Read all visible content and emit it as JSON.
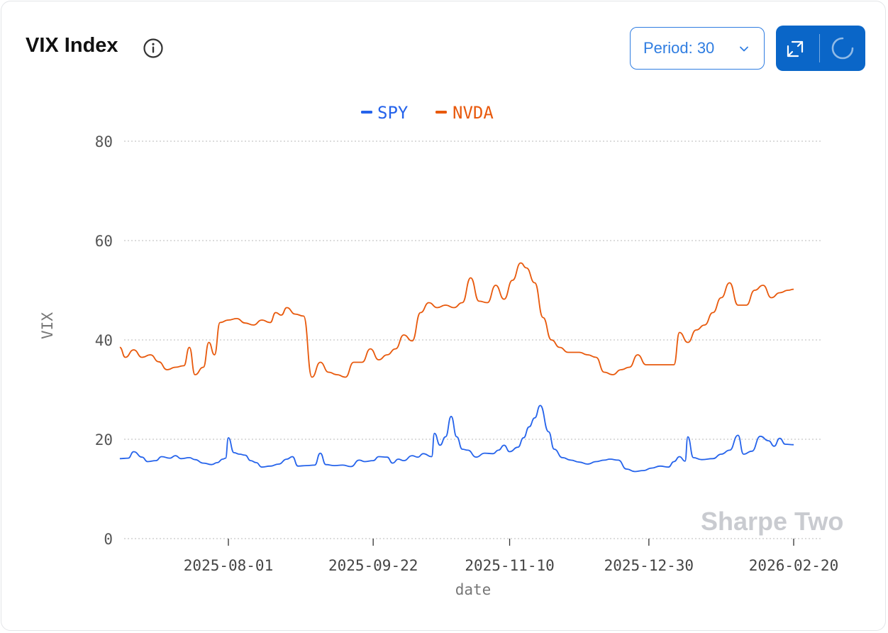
{
  "header": {
    "title": "VIX Index",
    "period_label": "Period: 30"
  },
  "icons": {
    "info": "info-icon",
    "chevron": "chevron-down-icon",
    "expand": "expand-icon",
    "loading": "spinner-icon"
  },
  "colors": {
    "accent": "#0a66c8",
    "spy": "#2563eb",
    "nvda": "#e8590c"
  },
  "watermark": "Sharpe Two",
  "chart_data": {
    "type": "line",
    "title": "",
    "xlabel": "date",
    "ylabel": "VIX",
    "ylim": [
      0,
      80
    ],
    "yticks": [
      0,
      20,
      40,
      60,
      80
    ],
    "xlim": [
      "2025-06-23",
      "2026-02-20"
    ],
    "xticks": [
      "2025-08-01",
      "2025-09-22",
      "2025-11-10",
      "2025-12-30",
      "2026-02-20"
    ],
    "grid": true,
    "legend": "top-center",
    "series": [
      {
        "name": "SPY",
        "color": "#2563eb",
        "points": [
          [
            "2025-06-23",
            16.1
          ],
          [
            "2025-06-26",
            16.2
          ],
          [
            "2025-06-28",
            17.5
          ],
          [
            "2025-07-01",
            16.4
          ],
          [
            "2025-07-03",
            15.5
          ],
          [
            "2025-07-06",
            15.7
          ],
          [
            "2025-07-08",
            16.5
          ],
          [
            "2025-07-11",
            16.2
          ],
          [
            "2025-07-13",
            16.7
          ],
          [
            "2025-07-15",
            16.1
          ],
          [
            "2025-07-18",
            16.3
          ],
          [
            "2025-07-20",
            15.9
          ],
          [
            "2025-07-23",
            15.2
          ],
          [
            "2025-07-26",
            14.9
          ],
          [
            "2025-07-28",
            15.3
          ],
          [
            "2025-07-30",
            16.0
          ],
          [
            "2025-07-31",
            16.2
          ],
          [
            "2025-08-01",
            20.3
          ],
          [
            "2025-08-03",
            17.3
          ],
          [
            "2025-08-05",
            17.0
          ],
          [
            "2025-08-07",
            16.8
          ],
          [
            "2025-08-09",
            15.7
          ],
          [
            "2025-08-11",
            15.3
          ],
          [
            "2025-08-13",
            14.4
          ],
          [
            "2025-08-16",
            14.6
          ],
          [
            "2025-08-19",
            15.0
          ],
          [
            "2025-08-22",
            16.0
          ],
          [
            "2025-08-24",
            16.5
          ],
          [
            "2025-08-26",
            14.6
          ],
          [
            "2025-08-29",
            14.7
          ],
          [
            "2025-09-01",
            14.8
          ],
          [
            "2025-09-03",
            17.2
          ],
          [
            "2025-09-05",
            14.9
          ],
          [
            "2025-09-08",
            14.7
          ],
          [
            "2025-09-11",
            14.8
          ],
          [
            "2025-09-14",
            14.5
          ],
          [
            "2025-09-17",
            15.8
          ],
          [
            "2025-09-19",
            15.5
          ],
          [
            "2025-09-22",
            15.7
          ],
          [
            "2025-09-24",
            16.5
          ],
          [
            "2025-09-27",
            16.4
          ],
          [
            "2025-09-29",
            15.2
          ],
          [
            "2025-10-01",
            16.0
          ],
          [
            "2025-10-03",
            15.7
          ],
          [
            "2025-10-06",
            16.7
          ],
          [
            "2025-10-08",
            16.4
          ],
          [
            "2025-10-10",
            17.1
          ],
          [
            "2025-10-13",
            16.5
          ],
          [
            "2025-10-14",
            21.2
          ],
          [
            "2025-10-16",
            18.8
          ],
          [
            "2025-10-18",
            20.5
          ],
          [
            "2025-10-20",
            24.6
          ],
          [
            "2025-10-22",
            20.5
          ],
          [
            "2025-10-24",
            18.0
          ],
          [
            "2025-10-26",
            17.8
          ],
          [
            "2025-10-29",
            16.4
          ],
          [
            "2025-11-01",
            17.2
          ],
          [
            "2025-11-04",
            17.1
          ],
          [
            "2025-11-06",
            17.8
          ],
          [
            "2025-11-08",
            18.8
          ],
          [
            "2025-11-10",
            17.5
          ],
          [
            "2025-11-13",
            18.4
          ],
          [
            "2025-11-15",
            20.3
          ],
          [
            "2025-11-17",
            22.5
          ],
          [
            "2025-11-19",
            24.3
          ],
          [
            "2025-11-21",
            26.8
          ],
          [
            "2025-11-24",
            21.5
          ],
          [
            "2025-11-26",
            18.0
          ],
          [
            "2025-11-29",
            16.3
          ],
          [
            "2025-12-02",
            15.8
          ],
          [
            "2025-12-05",
            15.4
          ],
          [
            "2025-12-08",
            15.0
          ],
          [
            "2025-12-11",
            15.5
          ],
          [
            "2025-12-14",
            15.8
          ],
          [
            "2025-12-16",
            16.0
          ],
          [
            "2025-12-19",
            15.8
          ],
          [
            "2025-12-22",
            14.0
          ],
          [
            "2025-12-25",
            13.5
          ],
          [
            "2025-12-28",
            13.7
          ],
          [
            "2025-12-31",
            14.2
          ],
          [
            "2026-01-03",
            14.6
          ],
          [
            "2026-01-06",
            14.4
          ],
          [
            "2026-01-08",
            15.5
          ],
          [
            "2026-01-10",
            16.5
          ],
          [
            "2026-01-12",
            15.6
          ],
          [
            "2026-01-13",
            20.5
          ],
          [
            "2026-01-15",
            16.3
          ],
          [
            "2026-01-18",
            15.9
          ],
          [
            "2026-01-22",
            16.1
          ],
          [
            "2026-01-25",
            17.0
          ],
          [
            "2026-01-28",
            17.8
          ],
          [
            "2026-01-31",
            20.8
          ],
          [
            "2026-02-02",
            17.0
          ],
          [
            "2026-02-05",
            17.6
          ],
          [
            "2026-02-08",
            20.6
          ],
          [
            "2026-02-11",
            19.7
          ],
          [
            "2026-02-13",
            18.6
          ],
          [
            "2026-02-15",
            20.2
          ],
          [
            "2026-02-17",
            19.0
          ],
          [
            "2026-02-20",
            18.9
          ]
        ]
      },
      {
        "name": "NVDA",
        "color": "#e8590c",
        "points": [
          [
            "2025-06-23",
            38.5
          ],
          [
            "2025-06-25",
            36.5
          ],
          [
            "2025-06-28",
            38.0
          ],
          [
            "2025-07-01",
            36.5
          ],
          [
            "2025-07-04",
            37.0
          ],
          [
            "2025-07-07",
            35.6
          ],
          [
            "2025-07-10",
            34.0
          ],
          [
            "2025-07-13",
            34.5
          ],
          [
            "2025-07-16",
            34.8
          ],
          [
            "2025-07-18",
            38.5
          ],
          [
            "2025-07-20",
            33.0
          ],
          [
            "2025-07-23",
            34.5
          ],
          [
            "2025-07-25",
            39.5
          ],
          [
            "2025-07-27",
            37.0
          ],
          [
            "2025-07-29",
            43.5
          ],
          [
            "2025-08-01",
            44.0
          ],
          [
            "2025-08-04",
            44.3
          ],
          [
            "2025-08-07",
            43.4
          ],
          [
            "2025-08-10",
            43.0
          ],
          [
            "2025-08-13",
            44.0
          ],
          [
            "2025-08-16",
            43.5
          ],
          [
            "2025-08-18",
            45.5
          ],
          [
            "2025-08-20",
            45.0
          ],
          [
            "2025-08-22",
            46.5
          ],
          [
            "2025-08-25",
            45.2
          ],
          [
            "2025-08-28",
            44.8
          ],
          [
            "2025-08-31",
            32.5
          ],
          [
            "2025-09-03",
            35.5
          ],
          [
            "2025-09-06",
            33.5
          ],
          [
            "2025-09-09",
            33.0
          ],
          [
            "2025-09-12",
            32.5
          ],
          [
            "2025-09-15",
            35.5
          ],
          [
            "2025-09-18",
            35.5
          ],
          [
            "2025-09-21",
            38.2
          ],
          [
            "2025-09-24",
            36.0
          ],
          [
            "2025-09-27",
            37.0
          ],
          [
            "2025-09-30",
            38.2
          ],
          [
            "2025-10-03",
            41.0
          ],
          [
            "2025-10-06",
            39.8
          ],
          [
            "2025-10-09",
            45.5
          ],
          [
            "2025-10-12",
            47.5
          ],
          [
            "2025-10-15",
            46.5
          ],
          [
            "2025-10-18",
            47.0
          ],
          [
            "2025-10-21",
            46.5
          ],
          [
            "2025-10-24",
            47.5
          ],
          [
            "2025-10-27",
            52.5
          ],
          [
            "2025-10-30",
            47.8
          ],
          [
            "2025-11-02",
            47.5
          ],
          [
            "2025-11-05",
            51.0
          ],
          [
            "2025-11-08",
            48.2
          ],
          [
            "2025-11-11",
            52.0
          ],
          [
            "2025-11-14",
            55.5
          ],
          [
            "2025-11-16",
            54.5
          ],
          [
            "2025-11-19",
            51.5
          ],
          [
            "2025-11-22",
            44.5
          ],
          [
            "2025-11-25",
            40.0
          ],
          [
            "2025-11-28",
            38.5
          ],
          [
            "2025-12-01",
            37.5
          ],
          [
            "2025-12-05",
            37.5
          ],
          [
            "2025-12-08",
            37.0
          ],
          [
            "2025-12-11",
            36.5
          ],
          [
            "2025-12-14",
            33.5
          ],
          [
            "2025-12-17",
            33.0
          ],
          [
            "2025-12-20",
            34.0
          ],
          [
            "2025-12-23",
            34.5
          ],
          [
            "2025-12-26",
            37.0
          ],
          [
            "2025-12-29",
            35.0
          ],
          [
            "2026-01-02",
            35.0
          ],
          [
            "2026-01-05",
            35.0
          ],
          [
            "2026-01-08",
            35.0
          ],
          [
            "2026-01-10",
            41.5
          ],
          [
            "2026-01-13",
            39.5
          ],
          [
            "2026-01-16",
            42.0
          ],
          [
            "2026-01-19",
            43.0
          ],
          [
            "2026-01-22",
            45.5
          ],
          [
            "2026-01-25",
            48.5
          ],
          [
            "2026-01-28",
            51.5
          ],
          [
            "2026-01-31",
            47.0
          ],
          [
            "2026-02-03",
            47.0
          ],
          [
            "2026-02-06",
            50.0
          ],
          [
            "2026-02-09",
            51.0
          ],
          [
            "2026-02-12",
            48.5
          ],
          [
            "2026-02-15",
            49.5
          ],
          [
            "2026-02-18",
            50.0
          ],
          [
            "2026-02-20",
            50.2
          ]
        ]
      }
    ]
  }
}
